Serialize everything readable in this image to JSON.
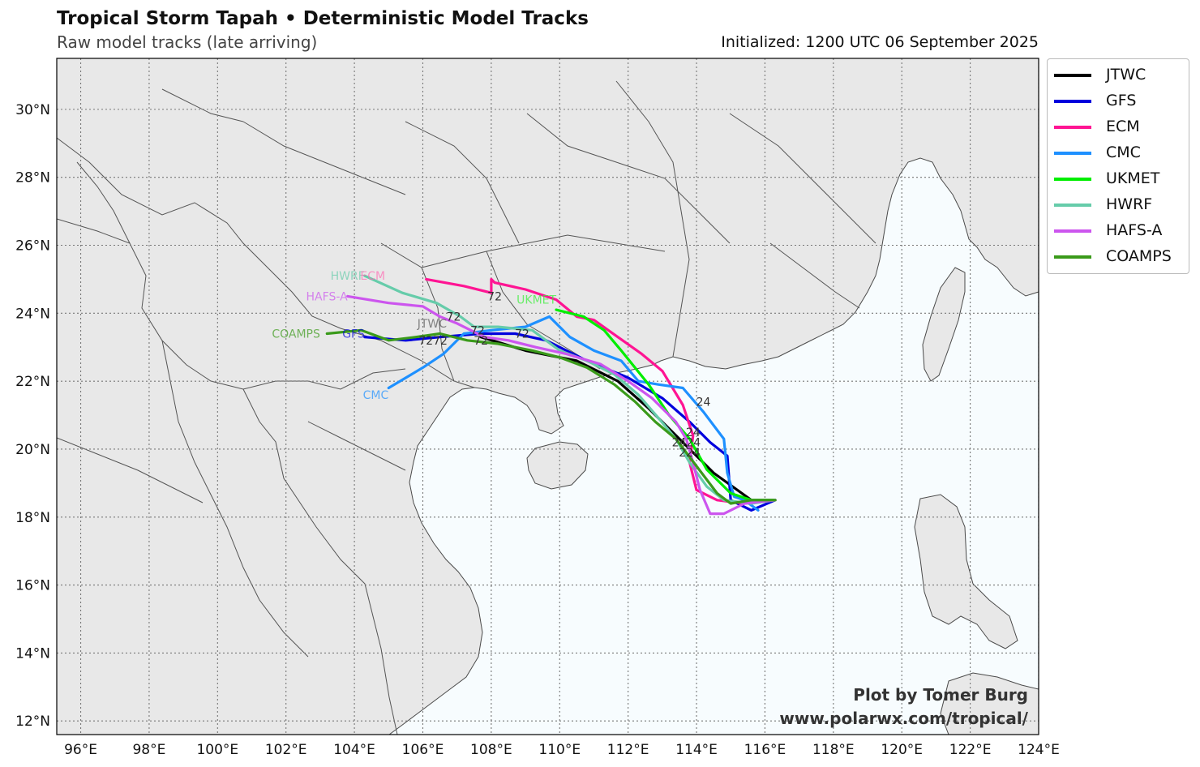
{
  "header": {
    "title": "Tropical Storm Tapah • Deterministic Model Tracks",
    "subtitle": "Raw model tracks (late arriving)",
    "initialized": "Initialized: 1200 UTC 06 September 2025"
  },
  "map": {
    "projection": "plate-carree",
    "lon_range": [
      95.3,
      124
    ],
    "lat_range": [
      11.6,
      31.5
    ],
    "colors": {
      "land": "#e8e8e8",
      "ocean": "#f7fcfe",
      "coast": "#4a4a4a",
      "grid": "#777777"
    },
    "x_ticks": [
      "96°E",
      "98°E",
      "100°E",
      "102°E",
      "104°E",
      "106°E",
      "108°E",
      "110°E",
      "112°E",
      "114°E",
      "116°E",
      "118°E",
      "120°E",
      "122°E",
      "124°E"
    ],
    "y_ticks": [
      "12°N",
      "14°N",
      "16°N",
      "18°N",
      "20°N",
      "22°N",
      "24°N",
      "26°N",
      "28°N",
      "30°N"
    ]
  },
  "tracks": [
    {
      "name": "JTWC",
      "color": "#000000",
      "points": [
        [
          116.3,
          18.5
        ],
        [
          115.6,
          18.5
        ],
        [
          114.5,
          19.3
        ],
        [
          113.5,
          20.3
        ],
        [
          112.6,
          21.2
        ],
        [
          111.7,
          22.0
        ],
        [
          110.5,
          22.6
        ],
        [
          109.0,
          22.9
        ],
        [
          107.7,
          23.3
        ]
      ]
    },
    {
      "name": "GFS",
      "color": "#0000dd",
      "points": [
        [
          116.3,
          18.5
        ],
        [
          115.6,
          18.2
        ],
        [
          115.0,
          18.5
        ],
        [
          114.9,
          19.8
        ],
        [
          114.4,
          20.2
        ],
        [
          113.8,
          20.8
        ],
        [
          113.0,
          21.5
        ],
        [
          112.0,
          22.1
        ],
        [
          110.8,
          22.6
        ],
        [
          109.6,
          23.2
        ],
        [
          108.7,
          23.4
        ],
        [
          107.7,
          23.4
        ],
        [
          106.5,
          23.3
        ],
        [
          105.5,
          23.2
        ],
        [
          104.3,
          23.3
        ]
      ]
    },
    {
      "name": "ECM",
      "color": "#ff1493",
      "points": [
        [
          116.3,
          18.5
        ],
        [
          115.4,
          18.4
        ],
        [
          114.6,
          18.5
        ],
        [
          114.0,
          18.8
        ],
        [
          113.8,
          19.6
        ],
        [
          113.9,
          20.4
        ],
        [
          113.6,
          21.3
        ],
        [
          113.0,
          22.3
        ],
        [
          112.4,
          22.8
        ],
        [
          111.7,
          23.3
        ],
        [
          111.0,
          23.8
        ],
        [
          110.5,
          23.9
        ],
        [
          109.9,
          24.4
        ],
        [
          109.0,
          24.7
        ],
        [
          108.1,
          24.9
        ],
        [
          108.0,
          25.0
        ],
        [
          108.0,
          24.6
        ],
        [
          107.2,
          24.8
        ],
        [
          106.1,
          25.0
        ]
      ]
    },
    {
      "name": "CMC",
      "color": "#1e90ff",
      "points": [
        [
          115.8,
          18.2
        ],
        [
          115.4,
          18.5
        ],
        [
          115.1,
          18.6
        ],
        [
          114.9,
          19.3
        ],
        [
          114.8,
          20.3
        ],
        [
          114.2,
          21.1
        ],
        [
          113.6,
          21.8
        ],
        [
          112.9,
          21.9
        ],
        [
          112.3,
          22.0
        ],
        [
          111.8,
          22.6
        ],
        [
          111.0,
          22.9
        ],
        [
          110.3,
          23.3
        ],
        [
          109.7,
          23.9
        ],
        [
          109.0,
          23.6
        ],
        [
          108.0,
          23.5
        ],
        [
          107.2,
          23.4
        ],
        [
          106.6,
          22.8
        ],
        [
          106.0,
          22.4
        ],
        [
          105.0,
          21.8
        ]
      ]
    },
    {
      "name": "UKMET",
      "color": "#00ee00",
      "points": [
        [
          116.3,
          18.5
        ],
        [
          115.6,
          18.5
        ],
        [
          115.0,
          18.7
        ],
        [
          114.3,
          19.4
        ],
        [
          113.8,
          20.3
        ],
        [
          113.2,
          21.0
        ],
        [
          112.6,
          21.9
        ],
        [
          111.8,
          22.9
        ],
        [
          111.3,
          23.5
        ],
        [
          110.7,
          23.9
        ],
        [
          109.9,
          24.1
        ]
      ]
    },
    {
      "name": "HWRF",
      "color": "#66ccaa",
      "points": [
        [
          116.3,
          18.5
        ],
        [
          115.6,
          18.4
        ],
        [
          114.8,
          18.5
        ],
        [
          114.3,
          18.9
        ],
        [
          113.8,
          19.6
        ],
        [
          113.4,
          20.3
        ],
        [
          112.9,
          20.9
        ],
        [
          112.3,
          21.6
        ],
        [
          111.6,
          22.2
        ],
        [
          110.8,
          22.6
        ],
        [
          110.0,
          22.9
        ],
        [
          109.2,
          23.5
        ],
        [
          108.2,
          23.6
        ],
        [
          107.5,
          23.6
        ],
        [
          107.1,
          23.9
        ],
        [
          106.4,
          24.3
        ],
        [
          105.4,
          24.6
        ],
        [
          104.3,
          25.1
        ]
      ]
    },
    {
      "name": "HAFS-A",
      "color": "#cc55ee",
      "points": [
        [
          116.3,
          18.5
        ],
        [
          115.4,
          18.4
        ],
        [
          114.8,
          18.1
        ],
        [
          114.4,
          18.1
        ],
        [
          114.1,
          18.8
        ],
        [
          113.9,
          19.6
        ],
        [
          113.7,
          20.3
        ],
        [
          113.4,
          20.8
        ],
        [
          112.7,
          21.5
        ],
        [
          112.0,
          22.0
        ],
        [
          111.2,
          22.5
        ],
        [
          110.2,
          22.8
        ],
        [
          109.3,
          23.0
        ],
        [
          108.5,
          23.2
        ],
        [
          107.8,
          23.3
        ],
        [
          107.4,
          23.5
        ],
        [
          107.0,
          23.7
        ],
        [
          106.5,
          23.9
        ],
        [
          106.0,
          24.2
        ],
        [
          105.0,
          24.3
        ],
        [
          103.8,
          24.5
        ]
      ]
    },
    {
      "name": "COAMPS",
      "color": "#3a9a1a",
      "points": [
        [
          116.3,
          18.5
        ],
        [
          115.6,
          18.5
        ],
        [
          115.0,
          18.4
        ],
        [
          114.6,
          18.7
        ],
        [
          114.0,
          19.5
        ],
        [
          113.4,
          20.3
        ],
        [
          112.8,
          20.8
        ],
        [
          112.2,
          21.4
        ],
        [
          111.6,
          21.9
        ],
        [
          110.8,
          22.4
        ],
        [
          110.0,
          22.7
        ],
        [
          109.2,
          22.9
        ],
        [
          108.2,
          23.1
        ],
        [
          107.3,
          23.2
        ],
        [
          106.5,
          23.4
        ],
        [
          105.8,
          23.3
        ],
        [
          105.0,
          23.2
        ],
        [
          104.2,
          23.5
        ],
        [
          103.2,
          23.4
        ]
      ]
    }
  ],
  "track_labels": [
    {
      "text": "HWRF",
      "color": "#66ccaa",
      "lon": 104.3,
      "lat": 25.1
    },
    {
      "text": "ECM",
      "color": "#ff69b4",
      "lon": 104.9,
      "lat": 25.1
    },
    {
      "text": "HAFS-A",
      "color": "#cc55ee",
      "lon": 103.8,
      "lat": 24.5
    },
    {
      "text": "UKMET",
      "color": "#33ee33",
      "lon": 109.9,
      "lat": 24.4
    },
    {
      "text": "JTWC",
      "color": "#555555",
      "lon": 106.7,
      "lat": 23.7
    },
    {
      "text": "COAMPS",
      "color": "#3a9a1a",
      "lon": 103.0,
      "lat": 23.4
    },
    {
      "text": "GFS",
      "color": "#0000dd",
      "lon": 104.3,
      "lat": 23.4
    },
    {
      "text": "CMC",
      "color": "#1e90ff",
      "lon": 105.0,
      "lat": 21.6
    }
  ],
  "hour_labels": [
    {
      "text": "72",
      "lon": 108.1,
      "lat": 24.5
    },
    {
      "text": "72",
      "lon": 106.9,
      "lat": 23.9
    },
    {
      "text": "72",
      "lon": 107.6,
      "lat": 23.5
    },
    {
      "text": "72",
      "lon": 108.9,
      "lat": 23.4
    },
    {
      "text": "7272",
      "lon": 106.3,
      "lat": 23.2
    },
    {
      "text": "72",
      "lon": 107.7,
      "lat": 23.2
    },
    {
      "text": "24",
      "lon": 114.2,
      "lat": 21.4
    },
    {
      "text": "24",
      "lon": 113.9,
      "lat": 20.5
    },
    {
      "text": "2424",
      "lon": 113.7,
      "lat": 20.2
    },
    {
      "text": "224",
      "lon": 113.8,
      "lat": 19.9
    }
  ],
  "legend": [
    {
      "label": "JTWC",
      "color": "#000000"
    },
    {
      "label": "GFS",
      "color": "#0000dd"
    },
    {
      "label": "ECM",
      "color": "#ff1493"
    },
    {
      "label": "CMC",
      "color": "#1e90ff"
    },
    {
      "label": "UKMET",
      "color": "#00ee00"
    },
    {
      "label": "HWRF",
      "color": "#66ccaa"
    },
    {
      "label": "HAFS-A",
      "color": "#cc55ee"
    },
    {
      "label": "COAMPS",
      "color": "#3a9a1a"
    }
  ],
  "credit": {
    "line1": "Plot by Tomer Burg",
    "line2": "www.polarwx.com/tropical/"
  }
}
